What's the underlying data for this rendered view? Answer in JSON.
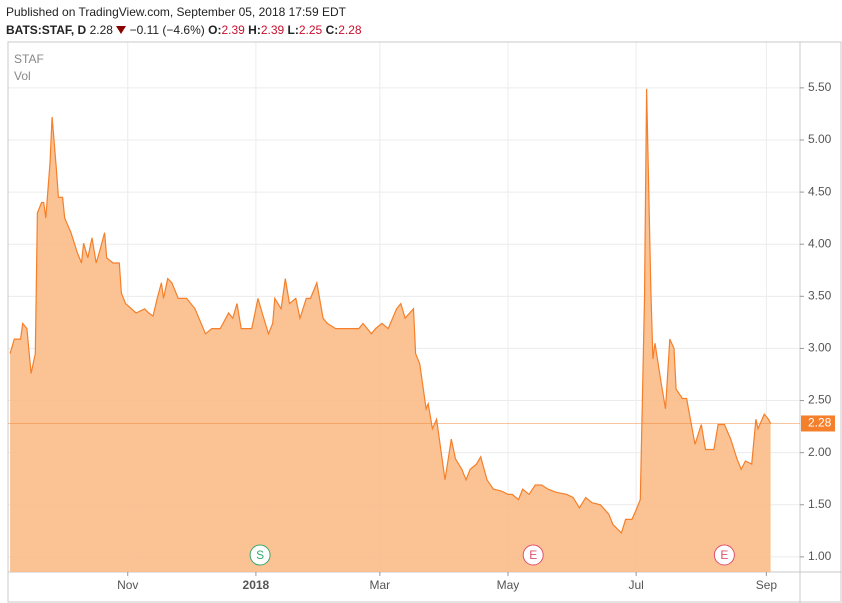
{
  "header": {
    "published": "Published on TradingView.com, September 05, 2018 17:59 EDT",
    "symbol": "BATS:STAF, D",
    "last": "2.28",
    "change": "−0.11 (−4.6%)",
    "open_label": "O:",
    "open": "2.39",
    "high_label": "H:",
    "high": "2.39",
    "low_label": "L:",
    "low": "2.25",
    "close_label": "C:",
    "close": "2.28"
  },
  "chart_data": {
    "type": "area",
    "volume_label": "Vol",
    "series": [
      {
        "name": "STAF",
        "color": "#f57f2a",
        "fill": "#fbbd88",
        "x": [
          -56,
          -54,
          -51,
          -50,
          -48,
          -46,
          -44,
          -43,
          -41,
          -40,
          -39,
          -37,
          -36,
          -34,
          -33,
          -31,
          -30,
          -27,
          -24,
          -22,
          -21,
          -19,
          -17,
          -15,
          -13,
          -11,
          -10,
          -7,
          -4,
          -3,
          -1,
          4,
          8,
          10,
          12,
          14,
          16,
          17,
          19,
          21,
          24,
          28,
          32,
          37,
          40,
          44,
          48,
          50,
          52,
          54,
          59,
          62,
          64,
          67,
          69,
          70,
          73,
          75,
          77,
          80,
          82,
          85,
          87,
          90,
          93,
          95,
          99,
          103,
          106,
          110,
          112,
          116,
          118,
          121,
          124,
          128,
          130,
          132,
          136,
          137,
          139,
          142,
          143,
          145,
          147,
          149,
          151,
          154,
          156,
          159,
          161,
          163,
          166,
          168,
          171,
          174,
          178,
          181,
          183,
          186,
          188,
          191,
          194,
          197,
          200,
          204,
          209,
          212,
          215,
          218,
          221,
          225,
          229,
          231,
          235,
          237,
          240,
          242,
          244,
          246,
          247,
          249,
          250,
          251,
          254,
          256,
          258,
          260,
          261,
          264,
          266,
          270,
          273,
          275,
          279,
          281,
          284,
          287,
          290,
          292,
          294,
          297,
          299,
          300,
          303,
          305,
          306
        ],
        "values": [
          2.95,
          3.09,
          3.09,
          3.24,
          3.19,
          2.76,
          2.95,
          4.3,
          4.4,
          4.4,
          4.25,
          4.78,
          5.22,
          4.73,
          4.45,
          4.45,
          4.25,
          4.11,
          3.92,
          3.82,
          4.01,
          3.87,
          4.06,
          3.82,
          3.96,
          4.11,
          3.87,
          3.82,
          3.82,
          3.53,
          3.43,
          3.34,
          3.38,
          3.34,
          3.31,
          3.48,
          3.63,
          3.48,
          3.67,
          3.63,
          3.48,
          3.48,
          3.38,
          3.14,
          3.19,
          3.19,
          3.34,
          3.29,
          3.43,
          3.19,
          3.19,
          3.48,
          3.34,
          3.14,
          3.24,
          3.48,
          3.38,
          3.67,
          3.43,
          3.48,
          3.29,
          3.48,
          3.48,
          3.63,
          3.29,
          3.24,
          3.19,
          3.19,
          3.19,
          3.19,
          3.24,
          3.14,
          3.19,
          3.24,
          3.19,
          3.38,
          3.43,
          3.29,
          3.38,
          2.95,
          2.85,
          2.42,
          2.47,
          2.23,
          2.32,
          2.03,
          1.74,
          2.13,
          1.94,
          1.84,
          1.74,
          1.84,
          1.89,
          1.96,
          1.74,
          1.65,
          1.63,
          1.6,
          1.6,
          1.55,
          1.65,
          1.6,
          1.69,
          1.69,
          1.65,
          1.62,
          1.6,
          1.57,
          1.47,
          1.57,
          1.52,
          1.5,
          1.41,
          1.31,
          1.23,
          1.36,
          1.36,
          1.45,
          1.55,
          3.48,
          5.49,
          3.58,
          2.9,
          3.05,
          2.66,
          2.42,
          3.09,
          3.0,
          2.61,
          2.52,
          2.52,
          2.08,
          2.27,
          2.03,
          2.03,
          2.27,
          2.27,
          2.13,
          1.94,
          1.84,
          1.92,
          1.89,
          2.32,
          2.23,
          2.37,
          2.32,
          2.28
        ]
      }
    ],
    "last_price": 2.28,
    "xlim": [
      -57,
      320
    ],
    "xticks": [
      {
        "value": 0,
        "label": "Nov"
      },
      {
        "value": 61,
        "label": "2018"
      },
      {
        "value": 120,
        "label": "Mar"
      },
      {
        "value": 181,
        "label": "May"
      },
      {
        "value": 242,
        "label": "Jul"
      },
      {
        "value": 304,
        "label": "Sep"
      }
    ],
    "ylim": [
      0.855,
      5.94
    ],
    "yticks": [
      {
        "value": 1,
        "label": "1.00"
      },
      {
        "value": 1.5,
        "label": "1.50"
      },
      {
        "value": 2,
        "label": "2.00"
      },
      {
        "value": 2.5,
        "label": "2.50"
      },
      {
        "value": 3,
        "label": "3.00"
      },
      {
        "value": 3.5,
        "label": "3.50"
      },
      {
        "value": 4,
        "label": "4.00"
      },
      {
        "value": 4.5,
        "label": "4.50"
      },
      {
        "value": 5,
        "label": "5.00"
      },
      {
        "value": 5.5,
        "label": "5.50"
      }
    ],
    "grid": true,
    "events": [
      {
        "x": 63,
        "label": "S",
        "color": "#3aa76d"
      },
      {
        "x": 193,
        "label": "E",
        "color": "#e0506a"
      },
      {
        "x": 284,
        "label": "E",
        "color": "#e0506a"
      }
    ]
  }
}
